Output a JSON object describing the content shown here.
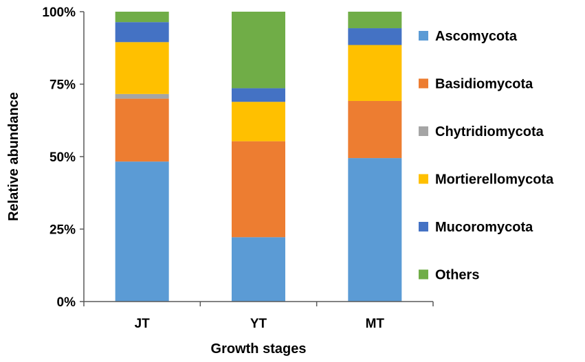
{
  "chart_data": {
    "type": "stacked-bar-100",
    "title": "",
    "xlabel": "Growth stages",
    "ylabel": "Relative abundance",
    "ylim": [
      0,
      100
    ],
    "y_ticks": [
      "0%",
      "25%",
      "50%",
      "75%",
      "100%"
    ],
    "y_tick_values": [
      0,
      25,
      50,
      75,
      100
    ],
    "categories": [
      "JT",
      "YT",
      "MT"
    ],
    "legend_position": "right",
    "series": [
      {
        "name": "Ascomycota",
        "color": "#5B9BD5",
        "values": [
          48.3,
          22.2,
          49.5
        ]
      },
      {
        "name": "Basidiomycota",
        "color": "#ED7D31",
        "values": [
          21.7,
          33.1,
          19.7
        ]
      },
      {
        "name": "Chytridiomycota",
        "color": "#A5A5A5",
        "values": [
          1.6,
          0.0,
          0.0
        ]
      },
      {
        "name": "Mortierellomycota",
        "color": "#FFC000",
        "values": [
          17.9,
          13.6,
          19.3
        ]
      },
      {
        "name": "Mucoromycota",
        "color": "#4472C4",
        "values": [
          6.9,
          4.7,
          5.8
        ]
      },
      {
        "name": "Others",
        "color": "#70AD47",
        "values": [
          3.6,
          26.4,
          5.7
        ]
      }
    ]
  }
}
